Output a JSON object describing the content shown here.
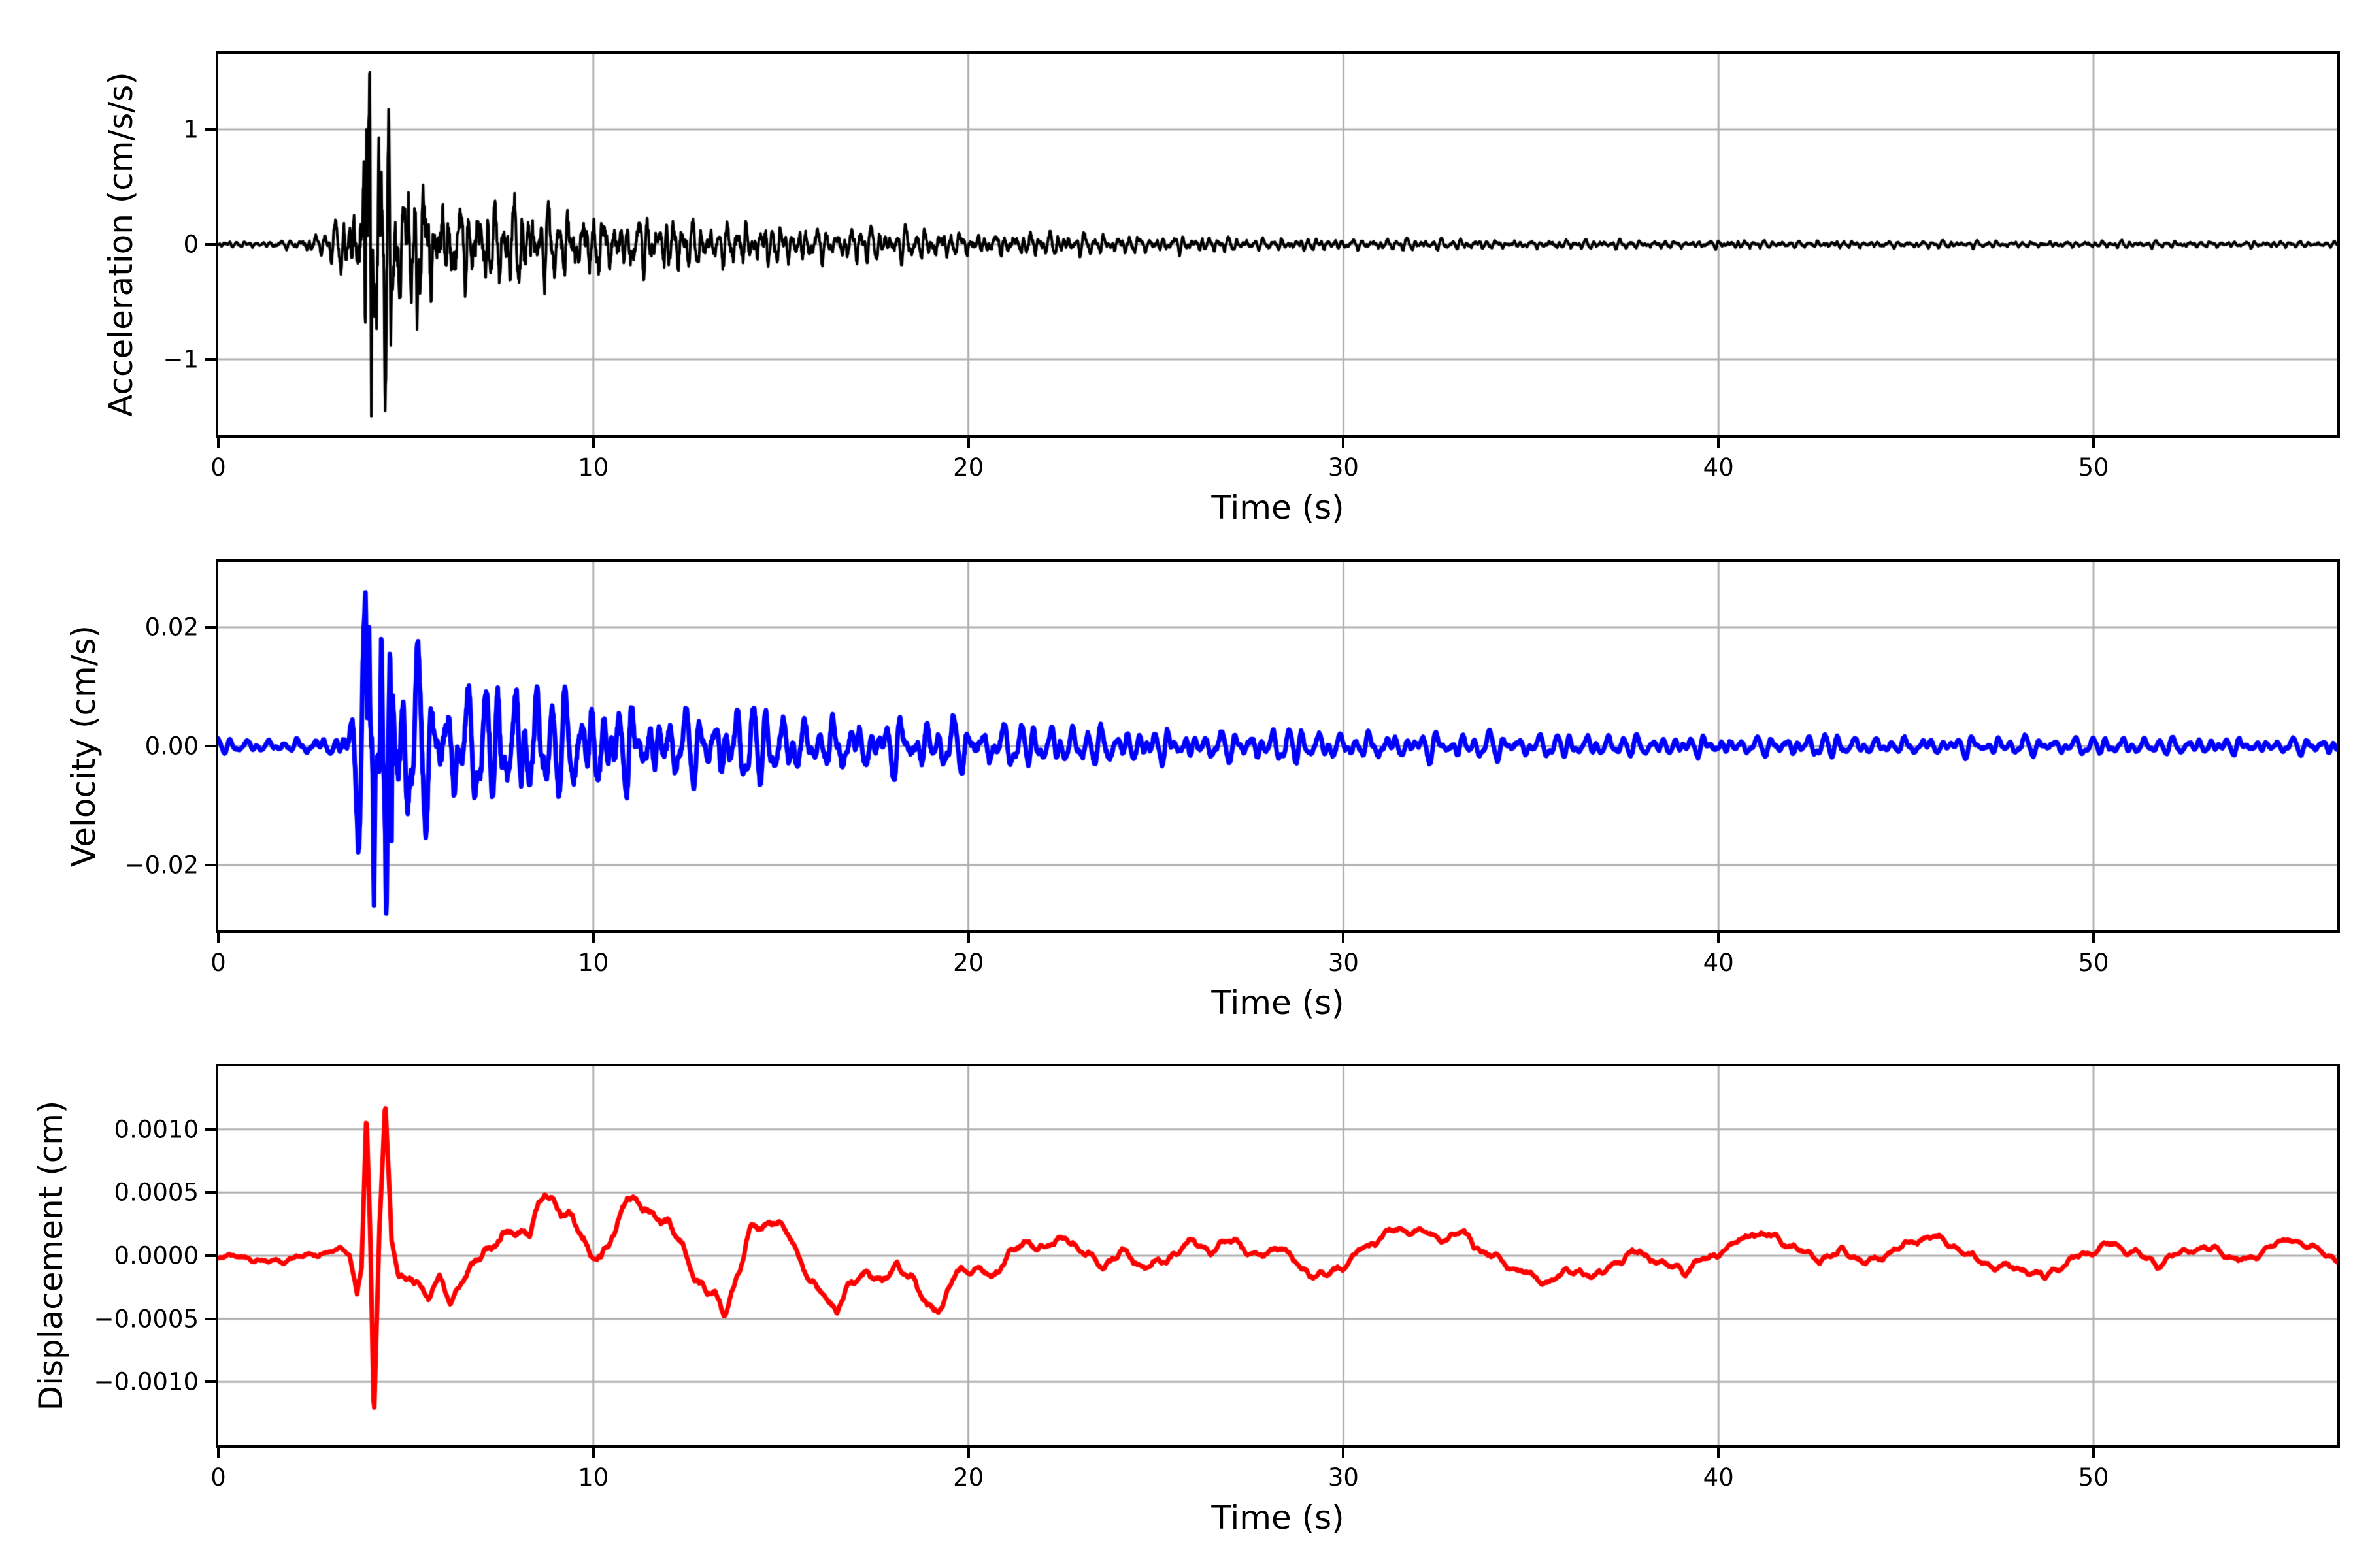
{
  "figure": {
    "background": "#ffffff",
    "grid_color": "#b0b0b0",
    "spine_color": "#000000",
    "tick_color": "#000000"
  },
  "chart_data": [
    {
      "id": "acceleration",
      "type": "line",
      "xlabel": "Time (s)",
      "ylabel": "Acceleration (cm/s/s)",
      "line_color": "#000000",
      "line_width": 4,
      "xlim": [
        0,
        56.5
      ],
      "ylim": [
        -1.66,
        1.66
      ],
      "grid": true,
      "xticks": [
        {
          "v": 0,
          "label": "0"
        },
        {
          "v": 10,
          "label": "10"
        },
        {
          "v": 20,
          "label": "20"
        },
        {
          "v": 30,
          "label": "30"
        },
        {
          "v": 40,
          "label": "40"
        },
        {
          "v": 50,
          "label": "50"
        }
      ],
      "yticks": [
        {
          "v": -1,
          "label": "−1"
        },
        {
          "v": 0,
          "label": "0"
        },
        {
          "v": 1,
          "label": "1"
        }
      ],
      "signal": {
        "synthesis": "enveloped-noise",
        "seed": 911734,
        "dt": 0.01,
        "base_freq_hz": 4.2,
        "freq_mix": [
          0.5,
          0.8,
          1.0,
          1.35,
          1.8,
          2.6
        ],
        "amp_mix": [
          0.5,
          0.75,
          1.0,
          0.75,
          0.5,
          0.3
        ],
        "white_noise": 0.55,
        "envelope": [
          [
            0,
            0.022
          ],
          [
            1.5,
            0.026
          ],
          [
            2.3,
            0.05
          ],
          [
            3.0,
            0.12
          ],
          [
            3.5,
            0.28
          ],
          [
            3.8,
            0.55
          ],
          [
            3.95,
            0.95
          ],
          [
            4.45,
            0.95
          ],
          [
            4.75,
            0.62
          ],
          [
            5.2,
            0.5
          ],
          [
            6,
            0.4
          ],
          [
            7,
            0.33
          ],
          [
            8,
            0.3
          ],
          [
            9,
            0.27
          ],
          [
            10,
            0.24
          ],
          [
            12,
            0.2
          ],
          [
            14,
            0.17
          ],
          [
            16,
            0.14
          ],
          [
            18,
            0.12
          ],
          [
            20,
            0.1
          ],
          [
            22,
            0.085
          ],
          [
            25,
            0.065
          ],
          [
            28,
            0.05
          ],
          [
            32,
            0.04
          ],
          [
            36,
            0.033
          ],
          [
            40,
            0.03
          ],
          [
            46,
            0.026
          ],
          [
            56.5,
            0.024
          ]
        ],
        "peaks": [
          [
            3.88,
            0.72
          ],
          [
            3.95,
            1.0
          ],
          [
            4.08,
            -1.5
          ],
          [
            4.28,
            0.93
          ],
          [
            4.45,
            -1.45
          ],
          [
            4.6,
            -0.88
          ],
          [
            5.3,
            -0.74
          ]
        ]
      }
    },
    {
      "id": "velocity",
      "type": "line",
      "xlabel": "Time (s)",
      "ylabel": "Velocity (cm/s)",
      "line_color": "#0000ff",
      "line_width": 7,
      "xlim": [
        0,
        56.5
      ],
      "ylim": [
        -0.031,
        0.031
      ],
      "grid": true,
      "xticks": [
        {
          "v": 0,
          "label": "0"
        },
        {
          "v": 10,
          "label": "10"
        },
        {
          "v": 20,
          "label": "20"
        },
        {
          "v": 30,
          "label": "30"
        },
        {
          "v": 40,
          "label": "40"
        },
        {
          "v": 50,
          "label": "50"
        }
      ],
      "yticks": [
        {
          "v": -0.02,
          "label": "−0.02"
        },
        {
          "v": 0,
          "label": "0.00"
        },
        {
          "v": 0.02,
          "label": "0.02"
        }
      ],
      "signal": {
        "synthesis": "enveloped-noise",
        "seed": 528091,
        "dt": 0.012,
        "base_freq_hz": 2.8,
        "freq_mix": [
          0.55,
          0.8,
          1.0,
          1.4,
          2.0
        ],
        "amp_mix": [
          0.7,
          0.9,
          1.0,
          0.7,
          0.35
        ],
        "white_noise": 0.25,
        "envelope": [
          [
            0,
            0.0009
          ],
          [
            2,
            0.001
          ],
          [
            3,
            0.0015
          ],
          [
            3.5,
            0.004
          ],
          [
            3.8,
            0.012
          ],
          [
            4.0,
            0.019
          ],
          [
            4.5,
            0.018
          ],
          [
            5,
            0.012
          ],
          [
            5.6,
            0.01
          ],
          [
            6.5,
            0.0085
          ],
          [
            8,
            0.009
          ],
          [
            9,
            0.008
          ],
          [
            10,
            0.0072
          ],
          [
            11,
            0.0062
          ],
          [
            12,
            0.0058
          ],
          [
            14,
            0.005
          ],
          [
            16,
            0.0042
          ],
          [
            18,
            0.0036
          ],
          [
            20,
            0.0032
          ],
          [
            23,
            0.0028
          ],
          [
            26,
            0.0023
          ],
          [
            30,
            0.002
          ],
          [
            34,
            0.0017
          ],
          [
            38,
            0.0015
          ],
          [
            44,
            0.0013
          ],
          [
            50,
            0.0012
          ],
          [
            56.5,
            0.0012
          ]
        ],
        "peaks": [
          [
            3.92,
            0.0272
          ],
          [
            4.02,
            0.02
          ],
          [
            4.15,
            -0.0283
          ],
          [
            4.35,
            0.0212
          ],
          [
            4.48,
            -0.0297
          ],
          [
            4.62,
            -0.016
          ]
        ]
      }
    },
    {
      "id": "displacement",
      "type": "line",
      "xlabel": "Time (s)",
      "ylabel": "Displacement (cm)",
      "line_color": "#ff0000",
      "line_width": 7,
      "xlim": [
        0,
        56.5
      ],
      "ylim": [
        -0.0015,
        0.0015
      ],
      "grid": true,
      "xticks": [
        {
          "v": 0,
          "label": "0"
        },
        {
          "v": 10,
          "label": "10"
        },
        {
          "v": 20,
          "label": "20"
        },
        {
          "v": 30,
          "label": "30"
        },
        {
          "v": 40,
          "label": "40"
        },
        {
          "v": 50,
          "label": "50"
        }
      ],
      "yticks": [
        {
          "v": -0.001,
          "label": "−0.0010"
        },
        {
          "v": -0.0005,
          "label": "−0.0005"
        },
        {
          "v": 0,
          "label": "0.0000"
        },
        {
          "v": 0.0005,
          "label": "0.0005"
        },
        {
          "v": 0.001,
          "label": "0.0010"
        }
      ],
      "signal": {
        "synthesis": "baseline-plus-ripple",
        "seed": 77443,
        "dt": 0.02,
        "unit_scale": 0.0001,
        "ripple_freqs_hz": [
          1.1,
          2.3
        ],
        "ripple_envelope": [
          [
            0,
            0.25
          ],
          [
            3.5,
            0.3
          ],
          [
            4,
            0.8
          ],
          [
            6,
            0.65
          ],
          [
            12,
            0.6
          ],
          [
            20,
            0.5
          ],
          [
            30,
            0.45
          ],
          [
            45,
            0.4
          ],
          [
            56.5,
            0.35
          ]
        ],
        "baseline": [
          [
            0,
            0
          ],
          [
            0.8,
            -0.2
          ],
          [
            1.5,
            -0.45
          ],
          [
            2.2,
            -0.15
          ],
          [
            2.8,
            0.4
          ],
          [
            3.25,
            0.55
          ],
          [
            3.5,
            0.1
          ],
          [
            3.7,
            -3.0
          ],
          [
            3.82,
            -0.8
          ],
          [
            3.95,
            11.5
          ],
          [
            4.05,
            1.5
          ],
          [
            4.15,
            -13.6
          ],
          [
            4.3,
            2.5
          ],
          [
            4.45,
            12.7
          ],
          [
            4.62,
            1.0
          ],
          [
            4.8,
            -1.2
          ],
          [
            5.0,
            -2.4
          ],
          [
            5.3,
            -1.6
          ],
          [
            5.6,
            -3.0
          ],
          [
            5.9,
            -2.0
          ],
          [
            6.2,
            -3.4
          ],
          [
            6.5,
            -1.8
          ],
          [
            6.8,
            -0.8
          ],
          [
            7.1,
            0.6
          ],
          [
            7.5,
            1.3
          ],
          [
            7.9,
            1.8
          ],
          [
            8.3,
            2.1
          ],
          [
            8.7,
            4.8
          ],
          [
            9.0,
            4.2
          ],
          [
            9.4,
            2.8
          ],
          [
            9.8,
            1.0
          ],
          [
            10.2,
            -0.5
          ],
          [
            10.6,
            1.8
          ],
          [
            10.9,
            4.9
          ],
          [
            11.2,
            4.0
          ],
          [
            11.6,
            3.2
          ],
          [
            12.0,
            2.6
          ],
          [
            12.4,
            0.4
          ],
          [
            12.8,
            -2.0
          ],
          [
            13.2,
            -3.2
          ],
          [
            13.5,
            -4.3
          ],
          [
            13.9,
            -1.2
          ],
          [
            14.2,
            2.2
          ],
          [
            14.6,
            2.6
          ],
          [
            15.0,
            2.4
          ],
          [
            15.4,
            0.8
          ],
          [
            15.8,
            -2.2
          ],
          [
            16.2,
            -3.2
          ],
          [
            16.5,
            -4.2
          ],
          [
            16.9,
            -2.2
          ],
          [
            17.3,
            -1.2
          ],
          [
            17.7,
            -2.2
          ],
          [
            18.1,
            -0.6
          ],
          [
            18.5,
            -2.0
          ],
          [
            18.9,
            -3.9
          ],
          [
            19.3,
            -4.1
          ],
          [
            19.7,
            -1.4
          ],
          [
            20.1,
            -0.8
          ],
          [
            20.6,
            -1.6
          ],
          [
            21.1,
            0.4
          ],
          [
            21.6,
            1.1
          ],
          [
            22.1,
            0.5
          ],
          [
            22.6,
            1.5
          ],
          [
            23.1,
            0.3
          ],
          [
            23.6,
            -0.7
          ],
          [
            24.1,
            0.5
          ],
          [
            24.7,
            -1.1
          ],
          [
            25.3,
            -0.1
          ],
          [
            25.9,
            1.1
          ],
          [
            26.5,
            0.5
          ],
          [
            27.1,
            1.3
          ],
          [
            27.7,
            -0.3
          ],
          [
            28.3,
            0.9
          ],
          [
            28.9,
            -1.1
          ],
          [
            29.5,
            -1.7
          ],
          [
            30.1,
            -0.5
          ],
          [
            30.7,
            0.9
          ],
          [
            31.3,
            1.9
          ],
          [
            31.9,
            2.1
          ],
          [
            32.5,
            1.1
          ],
          [
            33.1,
            1.7
          ],
          [
            33.7,
            0.3
          ],
          [
            34.3,
            -0.7
          ],
          [
            34.9,
            -1.5
          ],
          [
            35.5,
            -2.1
          ],
          [
            36.1,
            -1.1
          ],
          [
            36.7,
            -1.7
          ],
          [
            37.3,
            -0.5
          ],
          [
            37.9,
            0.5
          ],
          [
            38.5,
            -0.5
          ],
          [
            39.1,
            -1.1
          ],
          [
            39.7,
            -0.3
          ],
          [
            40.3,
            0.7
          ],
          [
            40.9,
            1.9
          ],
          [
            41.5,
            1.5
          ],
          [
            42.1,
            0.5
          ],
          [
            42.7,
            -0.3
          ],
          [
            43.3,
            0.5
          ],
          [
            43.9,
            -0.7
          ],
          [
            44.5,
            0.3
          ],
          [
            45.1,
            1.1
          ],
          [
            45.7,
            1.5
          ],
          [
            46.3,
            0.7
          ],
          [
            46.9,
            -0.3
          ],
          [
            47.5,
            -0.9
          ],
          [
            48.1,
            -1.1
          ],
          [
            48.7,
            -1.7
          ],
          [
            49.3,
            -0.5
          ],
          [
            49.9,
            0.3
          ],
          [
            50.5,
            0.9
          ],
          [
            51.1,
            0.3
          ],
          [
            51.7,
            -0.7
          ],
          [
            52.3,
            0.3
          ],
          [
            52.9,
            0.7
          ],
          [
            53.5,
            0.3
          ],
          [
            54.1,
            -0.5
          ],
          [
            54.7,
            0.7
          ],
          [
            55.3,
            1.3
          ],
          [
            55.9,
            0.5
          ],
          [
            56.5,
            -0.3
          ]
        ]
      }
    }
  ]
}
